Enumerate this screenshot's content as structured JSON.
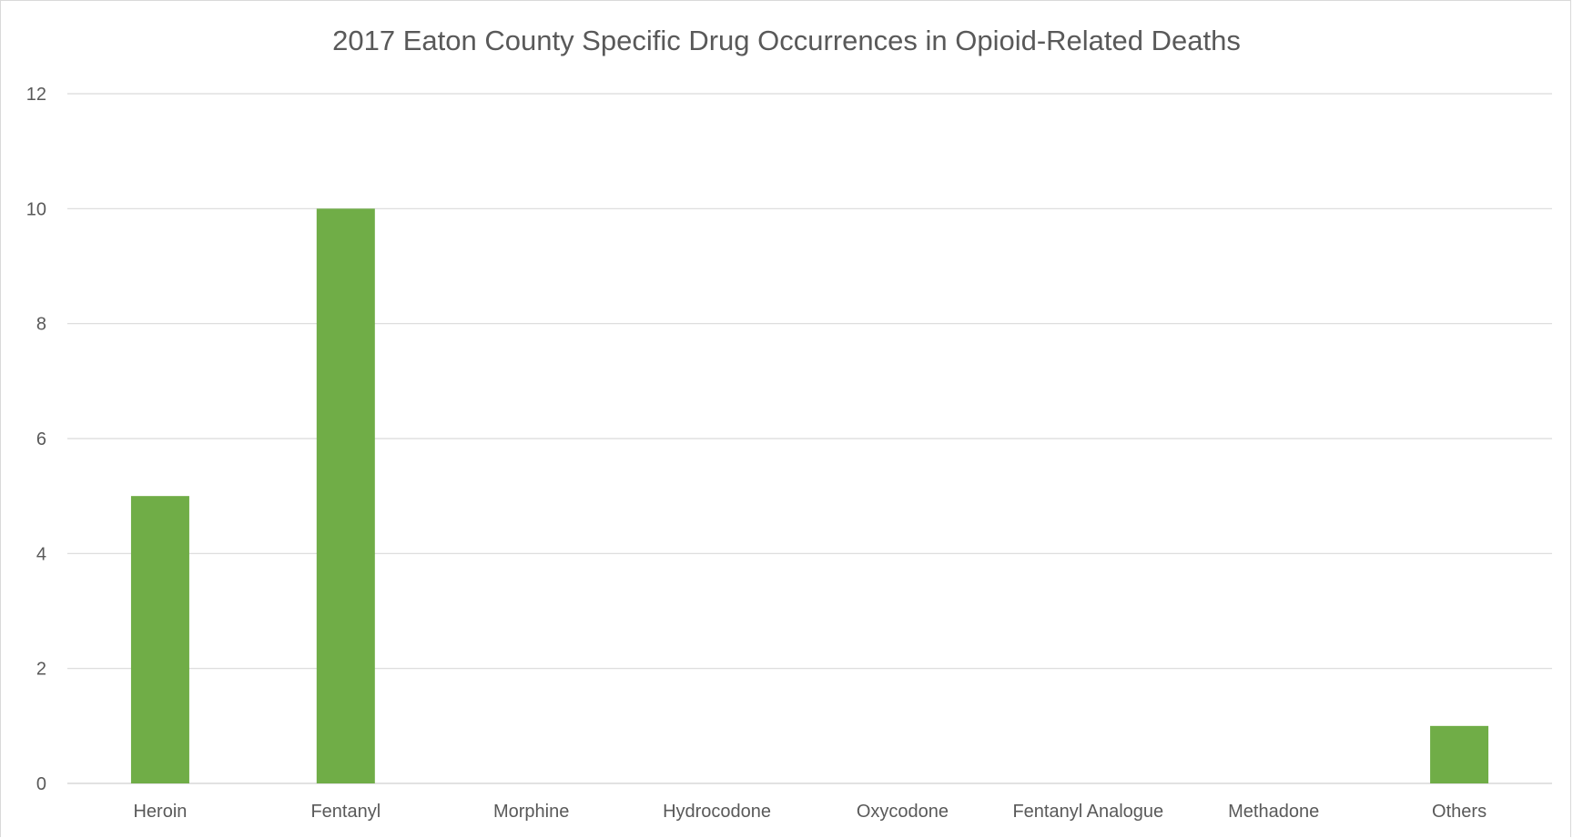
{
  "chart_data": {
    "type": "bar",
    "title": "2017 Eaton County Specific Drug Occurrences in Opioid-Related Deaths",
    "categories": [
      "Heroin",
      "Fentanyl",
      "Morphine",
      "Hydrocodone",
      "Oxycodone",
      "Fentanyl Analogue",
      "Methadone",
      "Others"
    ],
    "values": [
      5,
      10,
      0,
      0,
      0,
      0,
      0,
      1
    ],
    "ylim": [
      0,
      12
    ],
    "yticks": [
      0,
      2,
      4,
      6,
      8,
      10,
      12
    ],
    "xlabel": "",
    "ylabel": "",
    "grid": true,
    "legend": "none",
    "bar_color": "#70ad47",
    "gridline_color": "#d9d9d9",
    "text_color": "#595959"
  }
}
